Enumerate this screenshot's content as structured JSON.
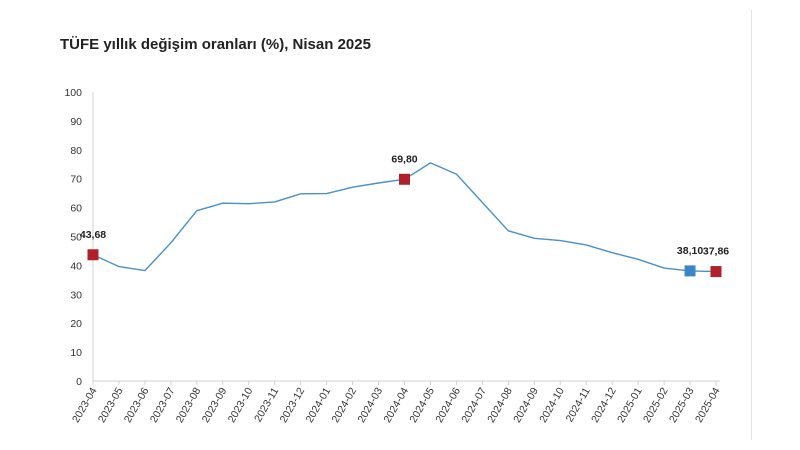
{
  "chart_data": {
    "type": "line",
    "title": "TÜFE yıllık değişim oranları (%), Nisan 2025",
    "xlabel": "",
    "ylabel": "",
    "ylim": [
      0,
      100
    ],
    "yticks": [
      "0",
      "10",
      "20",
      "30",
      "40",
      "50",
      "60",
      "70",
      "80",
      "90",
      "100"
    ],
    "grid": false,
    "legend": "none",
    "categories": [
      "2023-04",
      "2023-05",
      "2023-06",
      "2023-07",
      "2023-08",
      "2023-09",
      "2023-10",
      "2023-11",
      "2023-12",
      "2024-01",
      "2024-02",
      "2024-03",
      "2024-04",
      "2024-05",
      "2024-06",
      "2024-07",
      "2024-08",
      "2024-09",
      "2024-10",
      "2024-11",
      "2024-12",
      "2025-01",
      "2025-02",
      "2025-03",
      "2025-04"
    ],
    "series": [
      {
        "values": [
          43.68,
          39.59,
          38.21,
          47.83,
          58.94,
          61.53,
          61.36,
          61.98,
          64.77,
          64.86,
          67.07,
          68.5,
          69.8,
          75.45,
          71.6,
          61.78,
          51.97,
          49.38,
          48.58,
          47.09,
          44.38,
          42.12,
          39.05,
          38.1,
          37.86
        ],
        "color": "#4a90c8"
      }
    ],
    "highlights": [
      {
        "category": "2023-04",
        "value": 43.68,
        "label": "43,68",
        "color": "#b0202a"
      },
      {
        "category": "2024-04",
        "value": 69.8,
        "label": "69,80",
        "color": "#b0202a"
      },
      {
        "category": "2025-03",
        "value": 38.1,
        "label": "38,10",
        "color": "#3d86c6"
      },
      {
        "category": "2025-04",
        "value": 37.86,
        "label": "37,86",
        "color": "#b0202a"
      }
    ]
  }
}
